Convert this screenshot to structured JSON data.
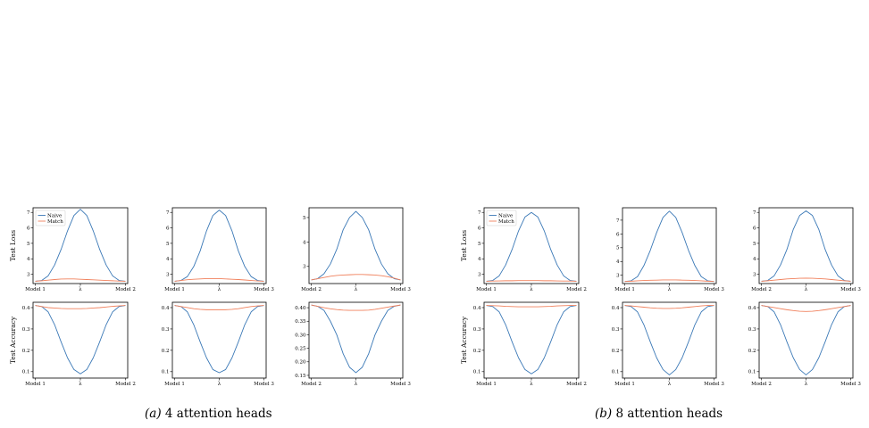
{
  "captions": [
    {
      "label": "(a)",
      "text": "4 attention heads"
    },
    {
      "label": "(b)",
      "text": "8 attention heads"
    }
  ],
  "colors": {
    "naive": "#3a78b6",
    "match": "#f0805c"
  },
  "chart_data": [
    {
      "type": "line",
      "group": "a",
      "row": "loss",
      "ylabel": "Test Loss",
      "ylim": [
        2.4,
        7.3
      ],
      "yticks": [
        "3",
        "4",
        "5",
        "6",
        "7"
      ],
      "xticks": [
        "Model 1",
        "λ",
        "Model 2"
      ],
      "legend": {
        "placement": "top-left",
        "entries": [
          "Naive",
          "Match"
        ]
      },
      "series": [
        {
          "name": "Naive",
          "values": [
            2.55,
            2.6,
            2.9,
            3.6,
            4.6,
            5.8,
            6.8,
            7.2,
            6.8,
            5.8,
            4.6,
            3.6,
            2.9,
            2.6,
            2.55
          ]
        },
        {
          "name": "Match",
          "values": [
            2.55,
            2.58,
            2.62,
            2.66,
            2.69,
            2.7,
            2.7,
            2.68,
            2.66,
            2.64,
            2.62,
            2.6,
            2.58,
            2.56,
            2.55
          ]
        }
      ]
    },
    {
      "type": "line",
      "group": "a",
      "row": "loss",
      "ylabel": "",
      "ylim": [
        2.4,
        7.3
      ],
      "yticks": [
        "3",
        "4",
        "5",
        "6",
        "7"
      ],
      "xticks": [
        "Model 1",
        "λ",
        "Model 3"
      ],
      "series": [
        {
          "values": [
            2.55,
            2.6,
            2.85,
            3.5,
            4.5,
            5.8,
            6.8,
            7.15,
            6.8,
            5.8,
            4.5,
            3.5,
            2.85,
            2.6,
            2.55
          ]
        },
        {
          "values": [
            2.55,
            2.6,
            2.65,
            2.68,
            2.7,
            2.72,
            2.72,
            2.72,
            2.7,
            2.68,
            2.66,
            2.63,
            2.6,
            2.57,
            2.55
          ]
        }
      ]
    },
    {
      "type": "line",
      "group": "a",
      "row": "loss",
      "ylabel": "",
      "ylim": [
        2.3,
        5.4
      ],
      "yticks": [
        "3",
        "4",
        "5"
      ],
      "xticks": [
        "Model 2",
        "λ",
        "Model 3"
      ],
      "series": [
        {
          "values": [
            2.45,
            2.5,
            2.7,
            3.1,
            3.7,
            4.5,
            5.0,
            5.25,
            5.0,
            4.5,
            3.7,
            3.1,
            2.7,
            2.5,
            2.45
          ]
        },
        {
          "values": [
            2.45,
            2.5,
            2.55,
            2.6,
            2.63,
            2.65,
            2.66,
            2.67,
            2.67,
            2.66,
            2.65,
            2.62,
            2.58,
            2.52,
            2.45
          ]
        }
      ]
    },
    {
      "type": "line",
      "group": "a",
      "row": "acc",
      "ylabel": "Test Accuracy",
      "ylim": [
        0.07,
        0.425
      ],
      "yticks": [
        "0.1",
        "0.2",
        "0.3",
        "0.4"
      ],
      "xticks": [
        "Model 1",
        "λ",
        "Model 2"
      ],
      "series": [
        {
          "values": [
            0.41,
            0.405,
            0.38,
            0.32,
            0.24,
            0.165,
            0.11,
            0.09,
            0.11,
            0.165,
            0.24,
            0.32,
            0.38,
            0.405,
            0.41
          ]
        },
        {
          "values": [
            0.41,
            0.405,
            0.4,
            0.398,
            0.396,
            0.395,
            0.395,
            0.395,
            0.396,
            0.398,
            0.4,
            0.403,
            0.406,
            0.408,
            0.41
          ]
        }
      ]
    },
    {
      "type": "line",
      "group": "a",
      "row": "acc",
      "ylabel": "",
      "ylim": [
        0.07,
        0.425
      ],
      "yticks": [
        "0.1",
        "0.2",
        "0.3",
        "0.4"
      ],
      "xticks": [
        "Model 1",
        "λ",
        "Model 3"
      ],
      "series": [
        {
          "values": [
            0.41,
            0.405,
            0.38,
            0.32,
            0.24,
            0.165,
            0.11,
            0.095,
            0.11,
            0.165,
            0.24,
            0.32,
            0.38,
            0.405,
            0.41
          ]
        },
        {
          "values": [
            0.41,
            0.405,
            0.4,
            0.395,
            0.392,
            0.39,
            0.39,
            0.39,
            0.39,
            0.392,
            0.395,
            0.4,
            0.405,
            0.408,
            0.41
          ]
        }
      ]
    },
    {
      "type": "line",
      "group": "a",
      "row": "acc",
      "ylabel": "",
      "ylim": [
        0.14,
        0.42
      ],
      "yticks": [
        "0.15",
        "0.20",
        "0.25",
        "0.30",
        "0.35",
        "0.40"
      ],
      "xticks": [
        "Model 2",
        "λ",
        "Model 3"
      ],
      "series": [
        {
          "values": [
            0.41,
            0.405,
            0.39,
            0.35,
            0.3,
            0.23,
            0.18,
            0.16,
            0.18,
            0.23,
            0.3,
            0.35,
            0.39,
            0.405,
            0.41
          ]
        },
        {
          "values": [
            0.41,
            0.405,
            0.4,
            0.396,
            0.393,
            0.391,
            0.39,
            0.39,
            0.39,
            0.391,
            0.394,
            0.398,
            0.402,
            0.406,
            0.41
          ]
        }
      ]
    },
    {
      "type": "line",
      "group": "b",
      "row": "loss",
      "ylabel": "Test Loss",
      "ylim": [
        2.4,
        7.3
      ],
      "yticks": [
        "3",
        "4",
        "5",
        "6",
        "7"
      ],
      "xticks": [
        "Model 1",
        "λ",
        "Model 2"
      ],
      "legend": {
        "placement": "top-left",
        "entries": [
          "Naive",
          "Match"
        ]
      },
      "series": [
        {
          "name": "Naive",
          "values": [
            2.55,
            2.6,
            2.9,
            3.6,
            4.6,
            5.8,
            6.7,
            7.0,
            6.7,
            5.8,
            4.6,
            3.6,
            2.9,
            2.6,
            2.55
          ]
        },
        {
          "name": "Match",
          "values": [
            2.55,
            2.56,
            2.57,
            2.58,
            2.58,
            2.59,
            2.59,
            2.59,
            2.59,
            2.58,
            2.58,
            2.57,
            2.56,
            2.56,
            2.55
          ]
        }
      ]
    },
    {
      "type": "line",
      "group": "b",
      "row": "loss",
      "ylabel": "",
      "ylim": [
        2.4,
        7.9
      ],
      "yticks": [
        "3",
        "4",
        "5",
        "6",
        "7"
      ],
      "xticks": [
        "Model 1",
        "λ",
        "Model 3"
      ],
      "series": [
        {
          "values": [
            2.55,
            2.6,
            2.9,
            3.7,
            4.8,
            6.1,
            7.2,
            7.65,
            7.2,
            6.1,
            4.8,
            3.7,
            2.9,
            2.6,
            2.55
          ]
        },
        {
          "values": [
            2.55,
            2.57,
            2.6,
            2.62,
            2.64,
            2.65,
            2.66,
            2.66,
            2.66,
            2.65,
            2.64,
            2.62,
            2.6,
            2.57,
            2.55
          ]
        }
      ]
    },
    {
      "type": "line",
      "group": "b",
      "row": "loss",
      "ylabel": "",
      "ylim": [
        2.4,
        7.3
      ],
      "yticks": [
        "3",
        "4",
        "5",
        "6",
        "7"
      ],
      "xticks": [
        "Model 2",
        "λ",
        "Model 3"
      ],
      "series": [
        {
          "values": [
            2.55,
            2.6,
            2.9,
            3.6,
            4.6,
            5.9,
            6.8,
            7.1,
            6.8,
            5.9,
            4.6,
            3.6,
            2.9,
            2.6,
            2.55
          ]
        },
        {
          "values": [
            2.55,
            2.58,
            2.62,
            2.66,
            2.7,
            2.72,
            2.74,
            2.75,
            2.74,
            2.72,
            2.7,
            2.66,
            2.62,
            2.58,
            2.55
          ]
        }
      ]
    },
    {
      "type": "line",
      "group": "b",
      "row": "acc",
      "ylabel": "Test Accuracy",
      "ylim": [
        0.07,
        0.425
      ],
      "yticks": [
        "0.1",
        "0.2",
        "0.3",
        "0.4"
      ],
      "xticks": [
        "Model 1",
        "λ",
        "Model 2"
      ],
      "series": [
        {
          "values": [
            0.41,
            0.405,
            0.38,
            0.32,
            0.24,
            0.165,
            0.11,
            0.09,
            0.11,
            0.165,
            0.24,
            0.32,
            0.38,
            0.405,
            0.41
          ]
        },
        {
          "values": [
            0.41,
            0.409,
            0.408,
            0.406,
            0.405,
            0.404,
            0.404,
            0.404,
            0.404,
            0.405,
            0.406,
            0.408,
            0.409,
            0.41,
            0.41
          ]
        }
      ]
    },
    {
      "type": "line",
      "group": "b",
      "row": "acc",
      "ylabel": "",
      "ylim": [
        0.07,
        0.425
      ],
      "yticks": [
        "0.1",
        "0.2",
        "0.3",
        "0.4"
      ],
      "xticks": [
        "Model 1",
        "λ",
        "Model 3"
      ],
      "series": [
        {
          "values": [
            0.41,
            0.405,
            0.38,
            0.32,
            0.24,
            0.165,
            0.11,
            0.085,
            0.11,
            0.165,
            0.24,
            0.32,
            0.38,
            0.405,
            0.41
          ]
        },
        {
          "values": [
            0.41,
            0.408,
            0.405,
            0.402,
            0.399,
            0.397,
            0.396,
            0.396,
            0.397,
            0.399,
            0.402,
            0.405,
            0.408,
            0.41,
            0.41
          ]
        }
      ]
    },
    {
      "type": "line",
      "group": "b",
      "row": "acc",
      "ylabel": "",
      "ylim": [
        0.07,
        0.425
      ],
      "yticks": [
        "0.1",
        "0.2",
        "0.3",
        "0.4"
      ],
      "xticks": [
        "Model 2",
        "λ",
        "Model 3"
      ],
      "series": [
        {
          "values": [
            0.41,
            0.405,
            0.38,
            0.32,
            0.24,
            0.165,
            0.11,
            0.085,
            0.11,
            0.165,
            0.24,
            0.32,
            0.38,
            0.405,
            0.41
          ]
        },
        {
          "values": [
            0.41,
            0.405,
            0.4,
            0.395,
            0.39,
            0.386,
            0.383,
            0.382,
            0.383,
            0.386,
            0.39,
            0.395,
            0.4,
            0.405,
            0.41
          ]
        }
      ]
    }
  ]
}
